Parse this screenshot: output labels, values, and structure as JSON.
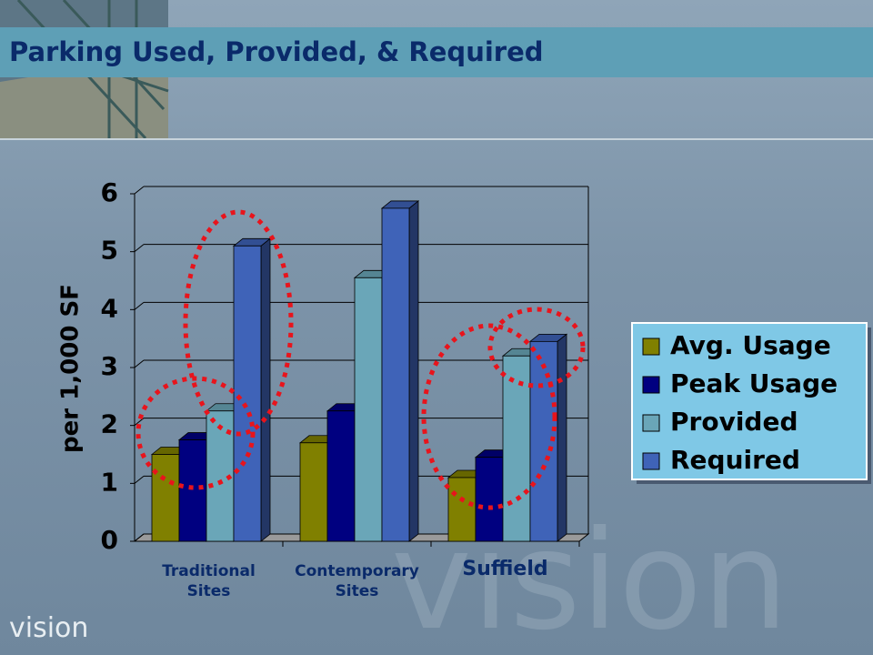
{
  "chart_data": {
    "type": "bar",
    "title": "Parking Used, Provided, & Required",
    "y_label": "per 1,000 SF",
    "categories": [
      "Traditional Sites",
      "Contemporary Sites",
      "Suffield"
    ],
    "series": [
      {
        "name": "Avg. Usage",
        "color": "#808000",
        "values": [
          1.5,
          1.7,
          1.1
        ]
      },
      {
        "name": "Peak Usage",
        "color": "#000080",
        "values": [
          1.75,
          2.25,
          1.45
        ]
      },
      {
        "name": "Provided",
        "color": "#6aa6b8",
        "values": [
          2.25,
          4.55,
          3.2
        ]
      },
      {
        "name": "Required",
        "color": "#3f63b8",
        "values": [
          5.1,
          5.75,
          3.45
        ]
      }
    ],
    "ylim": [
      0,
      6
    ],
    "yticks": [
      0,
      1,
      2,
      3,
      4,
      5,
      6
    ],
    "grid": true,
    "legend": "right",
    "logo": "vision",
    "watermark": "vision"
  }
}
